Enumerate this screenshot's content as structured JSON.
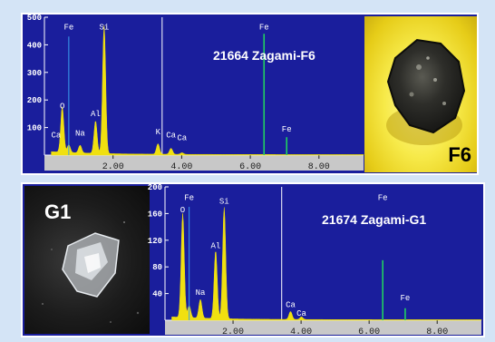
{
  "colors": {
    "background": "#d4e4f6",
    "plot": "#1a1e9c",
    "spectrum": "#f0e010",
    "line_marker": "#3aa0f0",
    "peak_marker": "#20d060",
    "text": "#ffffff"
  },
  "chart_data": [
    {
      "type": "area",
      "title": "21664 Zagami-F6",
      "xlabel": "",
      "ylabel": "",
      "xlim": [
        0,
        9.3
      ],
      "ylim": [
        0,
        500
      ],
      "x_ticks": [
        "2.00",
        "4.00",
        "6.00",
        "8.00"
      ],
      "y_ticks": [
        "100",
        "200",
        "300",
        "400",
        "500"
      ],
      "cursor_kev": 3.43,
      "element_labels": [
        {
          "label": "Fe",
          "kev": 0.71,
          "y": 455
        },
        {
          "label": "Si",
          "kev": 1.74,
          "y": 455
        },
        {
          "label": "Fe",
          "kev": 6.4,
          "y": 455
        },
        {
          "label": "O",
          "kev": 0.52,
          "y": 170
        },
        {
          "label": "Al",
          "kev": 1.49,
          "y": 142
        },
        {
          "label": "Na",
          "kev": 1.04,
          "y": 70
        },
        {
          "label": "Ca",
          "kev": 0.34,
          "y": 64
        },
        {
          "label": "K",
          "kev": 3.31,
          "y": 76
        },
        {
          "label": "Ca",
          "kev": 3.69,
          "y": 64
        },
        {
          "label": "Ca",
          "kev": 4.01,
          "y": 54
        },
        {
          "label": "Fe",
          "kev": 7.06,
          "y": 86
        }
      ],
      "peaks": [
        {
          "element": "O",
          "kev": 0.52,
          "counts": 165
        },
        {
          "element": "Fe",
          "kev": 0.71,
          "counts": 28
        },
        {
          "element": "Na",
          "kev": 1.04,
          "counts": 28
        },
        {
          "element": "Al",
          "kev": 1.49,
          "counts": 118
        },
        {
          "element": "Si",
          "kev": 1.74,
          "counts": 465
        },
        {
          "element": "K",
          "kev": 3.31,
          "counts": 38
        },
        {
          "element": "Ca",
          "kev": 3.69,
          "counts": 22
        },
        {
          "element": "Ca",
          "kev": 4.01,
          "counts": 6
        }
      ],
      "marker_lines": [
        {
          "element": "Fe",
          "kev": 0.71,
          "height": 430,
          "kind": "line"
        },
        {
          "element": "Fe",
          "kev": 6.4,
          "height": 440,
          "kind": "peak"
        },
        {
          "element": "Fe",
          "kev": 7.06,
          "height": 65,
          "kind": "peak"
        }
      ],
      "photo_label": "F6"
    },
    {
      "type": "area",
      "title": "21674 Zagami-G1",
      "xlabel": "",
      "ylabel": "",
      "xlim": [
        0,
        9.3
      ],
      "ylim": [
        0,
        200
      ],
      "x_ticks": [
        "2.00",
        "4.00",
        "6.00",
        "8.00"
      ],
      "y_ticks": [
        "40",
        "80",
        "120",
        "160",
        "200"
      ],
      "cursor_kev": 3.43,
      "element_labels": [
        {
          "label": "Fe",
          "kev": 0.71,
          "y": 180
        },
        {
          "label": "Si",
          "kev": 1.74,
          "y": 175
        },
        {
          "label": "Fe",
          "kev": 6.4,
          "y": 180
        },
        {
          "label": "O",
          "kev": 0.52,
          "y": 162
        },
        {
          "label": "Al",
          "kev": 1.49,
          "y": 108
        },
        {
          "label": "Na",
          "kev": 1.04,
          "y": 38
        },
        {
          "label": "Ca",
          "kev": 3.69,
          "y": 20
        },
        {
          "label": "Ca",
          "kev": 4.01,
          "y": 7
        },
        {
          "label": "Fe",
          "kev": 7.06,
          "y": 30
        }
      ],
      "peaks": [
        {
          "element": "O",
          "kev": 0.52,
          "counts": 156
        },
        {
          "element": "Fe",
          "kev": 0.71,
          "counts": 18
        },
        {
          "element": "Na",
          "kev": 1.04,
          "counts": 28
        },
        {
          "element": "Al",
          "kev": 1.49,
          "counts": 102
        },
        {
          "element": "Si",
          "kev": 1.74,
          "counts": 167
        },
        {
          "element": "Ca",
          "kev": 3.69,
          "counts": 12
        },
        {
          "element": "Ca",
          "kev": 4.01,
          "counts": 4
        }
      ],
      "marker_lines": [
        {
          "element": "Fe",
          "kev": 0.71,
          "height": 170,
          "kind": "line"
        },
        {
          "element": "Fe",
          "kev": 6.4,
          "height": 90,
          "kind": "peak"
        },
        {
          "element": "Fe",
          "kev": 7.06,
          "height": 18,
          "kind": "peak"
        }
      ],
      "photo_label": "G1"
    }
  ]
}
